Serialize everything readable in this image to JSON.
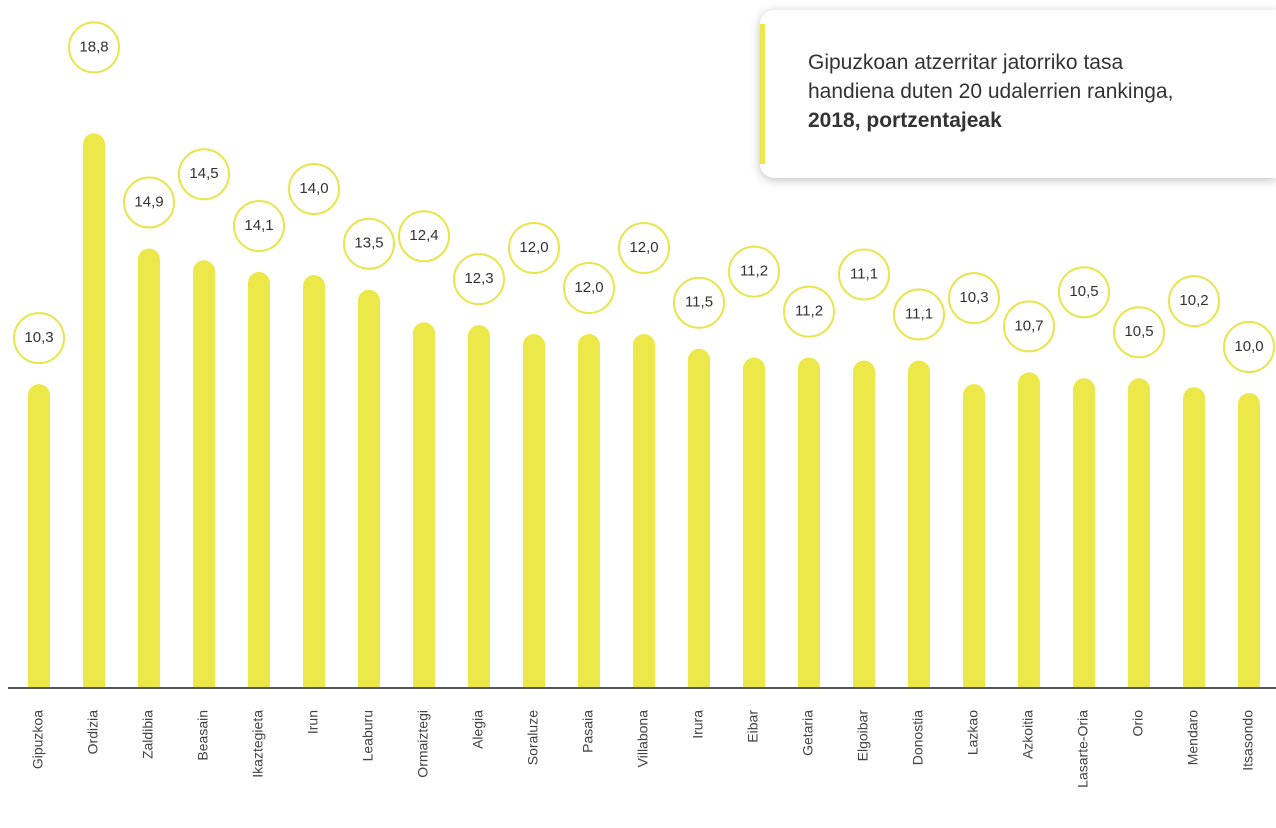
{
  "chart_data": {
    "type": "bar",
    "title": [
      "Gipuzkoan atzerritar jatorriko tasa",
      "handiena duten 20 udalerrien rankinga,"
    ],
    "title_emphasis": "2018, portzentajeak",
    "categories": [
      "Gipuzkoa",
      "Ordizia",
      "Zaldibia",
      "Beasain",
      "Ikaztegieta",
      "Irun",
      "Leaburu",
      "Ormaiztegi",
      "Alegia",
      "Soraluze",
      "Pasaia",
      "Villabona",
      "Irura",
      "Eibar",
      "Getaria",
      "Elgoibar",
      "Donostia",
      "Lazkao",
      "Azkoitia",
      "Lasarte-Oria",
      "Orio",
      "Mendaro",
      "Itsasondo"
    ],
    "values": [
      10.3,
      18.8,
      14.9,
      14.5,
      14.1,
      14.0,
      13.5,
      12.4,
      12.3,
      12.0,
      12.0,
      12.0,
      11.5,
      11.2,
      11.2,
      11.1,
      11.1,
      10.3,
      10.7,
      10.5,
      10.5,
      10.2,
      10.0
    ],
    "value_labels": [
      "10,3",
      "18,8",
      "14,9",
      "14,5",
      "14,1",
      "14,0",
      "13,5",
      "12,4",
      "12,3",
      "12,0",
      "12,0",
      "12,0",
      "11,5",
      "11,2",
      "11,2",
      "11,1",
      "11,1",
      "10,3",
      "10,7",
      "10,5",
      "10,5",
      "10,2",
      "10,0"
    ],
    "color": "#ede84a",
    "ylim": [
      0,
      20
    ]
  }
}
